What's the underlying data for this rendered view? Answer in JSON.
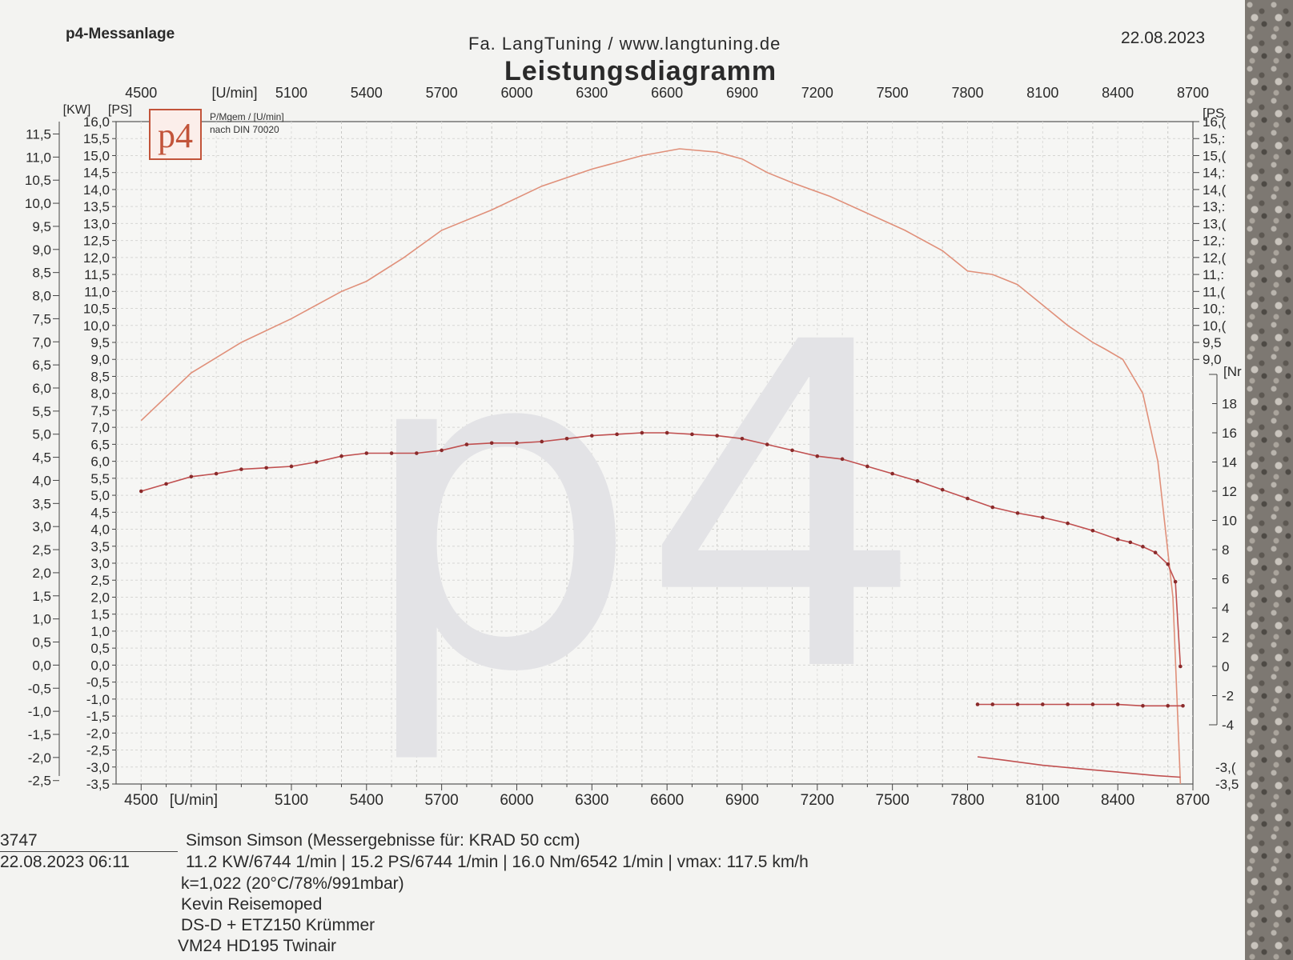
{
  "header": {
    "brand": "p4-Messanlage",
    "company": "Fa. LangTuning /   www.langtuning.de",
    "title": "Leistungsdiagramm",
    "date": "22.08.2023"
  },
  "logo": {
    "text": "p4",
    "note_line1": "P/Mgem / [U/min]",
    "note_line2": "nach DIN 70020"
  },
  "watermark": "p4",
  "chart_data": {
    "type": "line",
    "x_unit_label": "[U/min]",
    "x_ticks": [
      4500,
      5100,
      5400,
      5700,
      6000,
      6300,
      6600,
      6900,
      7200,
      7500,
      7800,
      8100,
      8400,
      8700
    ],
    "kw_axis": {
      "label": "[KW]",
      "ticks": [
        "11,5",
        "11,0",
        "10,5",
        "10,0",
        "9,5",
        "9,0",
        "8,5",
        "8,0",
        "7,5",
        "7,0",
        "6,5",
        "6,0",
        "5,5",
        "5,0",
        "4,5",
        "4,0",
        "3,5",
        "3,0",
        "2,5",
        "2,0",
        "1,5",
        "1,0",
        "0,5",
        "0,0",
        "-0,5",
        "-1,0",
        "-1,5",
        "-2,0",
        "-2,5"
      ]
    },
    "ps_axis": {
      "label": "[PS]",
      "ylim": [
        -3.5,
        16.0
      ],
      "ticks": [
        "16,0",
        "15,5",
        "15,0",
        "14,5",
        "14,0",
        "13,5",
        "13,0",
        "12,5",
        "12,0",
        "11,5",
        "11,0",
        "10,5",
        "10,0",
        "9,5",
        "9,0",
        "8,5",
        "8,0",
        "7,5",
        "7,0",
        "6,5",
        "6,0",
        "5,5",
        "5,0",
        "4,5",
        "4,0",
        "3,5",
        "3,0",
        "2,5",
        "2,0",
        "1,5",
        "1,0",
        "0,5",
        "0,0",
        "-0,5",
        "-1,0",
        "-1,5",
        "-2,0",
        "-2,5",
        "-3,0",
        "-3,5"
      ]
    },
    "right_ps_axis": {
      "label": "[PS",
      "ticks": [
        "16,(",
        "15,:",
        "15,(",
        "14,:",
        "14,(",
        "13,:",
        "13,(",
        "12,:",
        "12,(",
        "11,:",
        "11,(",
        "10,:",
        "10,(",
        "9,5",
        "9,0"
      ]
    },
    "nm_axis": {
      "label": "[Nr",
      "ylim": [
        -4,
        20
      ],
      "ticks": [
        "18",
        "16",
        "14",
        "12",
        "10",
        "8",
        "6",
        "4",
        "2",
        "0",
        "-2",
        "-4"
      ]
    },
    "right_bottom_ticks": [
      "-3,(",
      "-3,5"
    ],
    "series": [
      {
        "axis": "ps",
        "color": "#e0907a",
        "x": [
          4500,
          4700,
          4900,
          5100,
          5300,
          5400,
          5550,
          5700,
          5900,
          6100,
          6300,
          6500,
          6650,
          6800,
          6900,
          7000,
          7100,
          7250,
          7400,
          7550,
          7700,
          7800,
          7900,
          8000,
          8100,
          8200,
          8300,
          8350,
          8420,
          8500,
          8560,
          8620,
          8650
        ],
        "values": [
          7.2,
          8.6,
          9.5,
          10.2,
          11.0,
          11.3,
          12.0,
          12.8,
          13.4,
          14.1,
          14.6,
          15.0,
          15.2,
          15.1,
          14.9,
          14.5,
          14.2,
          13.8,
          13.3,
          12.8,
          12.2,
          11.6,
          11.5,
          11.2,
          10.6,
          10.0,
          9.5,
          9.3,
          9.0,
          8.0,
          6.0,
          2.0,
          -3.5
        ]
      },
      {
        "axis": "nm",
        "color": "#c05050",
        "markers": true,
        "x": [
          4500,
          4600,
          4700,
          4800,
          4900,
          5000,
          5100,
          5200,
          5300,
          5400,
          5500,
          5600,
          5700,
          5800,
          5900,
          6000,
          6100,
          6200,
          6300,
          6400,
          6500,
          6600,
          6700,
          6800,
          6900,
          7000,
          7100,
          7200,
          7300,
          7400,
          7500,
          7600,
          7700,
          7800,
          7900,
          8000,
          8100,
          8200,
          8300,
          8400,
          8450,
          8500,
          8550,
          8600,
          8630,
          8650
        ],
        "values": [
          12.0,
          12.5,
          13.0,
          13.2,
          13.5,
          13.6,
          13.7,
          14.0,
          14.4,
          14.6,
          14.6,
          14.6,
          14.8,
          15.2,
          15.3,
          15.3,
          15.4,
          15.6,
          15.8,
          15.9,
          16.0,
          16.0,
          15.9,
          15.8,
          15.6,
          15.2,
          14.8,
          14.4,
          14.2,
          13.7,
          13.2,
          12.7,
          12.1,
          11.5,
          10.9,
          10.5,
          10.2,
          9.8,
          9.3,
          8.7,
          8.5,
          8.2,
          7.8,
          7.0,
          5.8,
          0.0
        ]
      },
      {
        "axis": "nm",
        "color": "#c05050",
        "markers": true,
        "x": [
          7840,
          7900,
          8000,
          8100,
          8200,
          8300,
          8400,
          8500,
          8600,
          8660
        ],
        "values": [
          -2.6,
          -2.6,
          -2.6,
          -2.6,
          -2.6,
          -2.6,
          -2.6,
          -2.7,
          -2.7,
          -2.7
        ]
      },
      {
        "axis": "ps",
        "color": "#c05050",
        "x": [
          7840,
          7950,
          8100,
          8250,
          8400,
          8550,
          8650
        ],
        "values": [
          -2.7,
          -2.8,
          -2.95,
          -3.05,
          -3.15,
          -3.25,
          -3.3
        ]
      }
    ]
  },
  "info": {
    "id": "3747",
    "datetime": "22.08.2023  06:11",
    "line1": "Simson Simson (Messergebnisse für: KRAD 50 ccm)",
    "line2": "11.2 KW/6744 1/min  |  15.2 PS/6744 1/min  |  16.0 Nm/6542 1/min | vmax: 117.5 km/h",
    "line3": "k=1,022 (20°C/78%/991mbar)",
    "line4": "Kevin Reisemoped",
    "line5": "DS-D + ETZ150 Krümmer",
    "line6": "VM24 HD195 Twinair"
  }
}
